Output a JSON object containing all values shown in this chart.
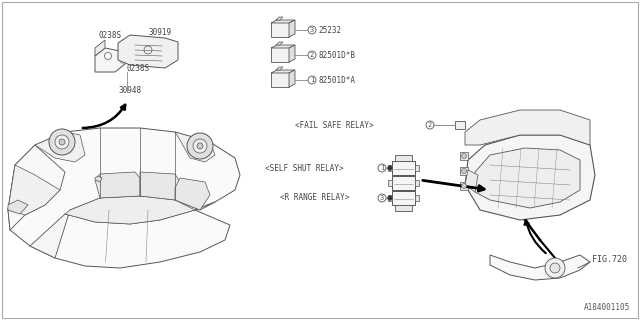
{
  "bg_color": "#ffffff",
  "line_color": "#555555",
  "dark_line": "#000000",
  "gray_line": "#888888",
  "fig_ref": "FIG.720",
  "part_id": "A184001105",
  "label_self_shut": "<SELF SHUT RELAY>",
  "label_r_range": "<R RANGE RELAY>",
  "label_fail_safe": "<FAIL SAFE RELAY>",
  "label_30948": "30948",
  "label_0238S_1": "0238S",
  "label_0238S_2": "0238S",
  "label_30919": "30919",
  "part1_num": "82501D*A",
  "part2_num": "82501D*B",
  "part3_num": "25232",
  "font_size": 5.5,
  "font_size_id": 5.5
}
